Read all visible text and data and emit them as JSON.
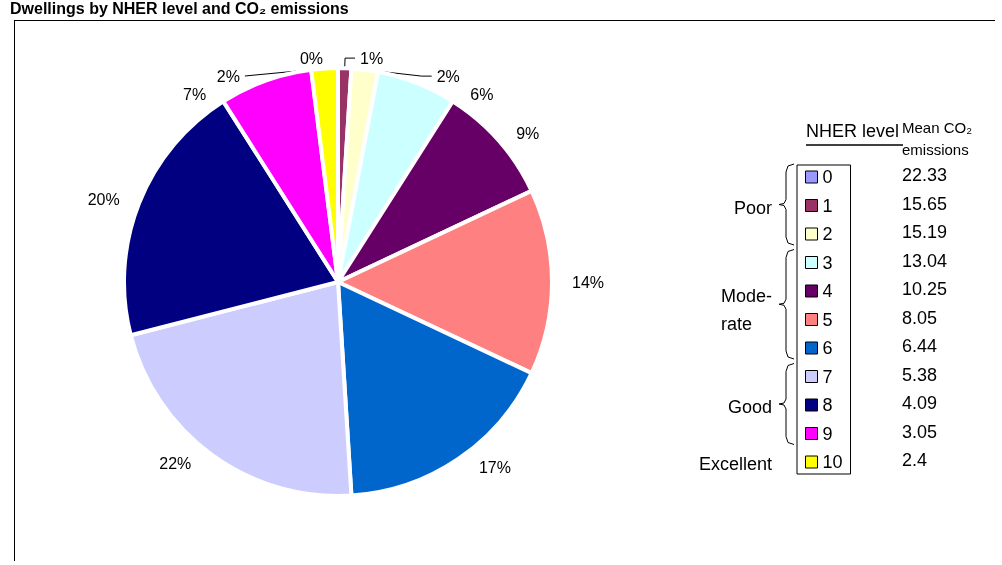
{
  "chart_data": {
    "type": "pie",
    "title": "Dwellings by NHER level and CO₂ emissions",
    "legend_title": "NHER level",
    "categories": [
      "0",
      "1",
      "2",
      "3",
      "4",
      "5",
      "6",
      "7",
      "8",
      "9",
      "10"
    ],
    "values": [
      0,
      1,
      2,
      6,
      9,
      14,
      17,
      22,
      20,
      7,
      2
    ],
    "colors": [
      "#9999ff",
      "#993366",
      "#ffffcc",
      "#ccffff",
      "#660066",
      "#ff8080",
      "#0066cc",
      "#ccccff",
      "#000080",
      "#ff00ff",
      "#ffff00"
    ],
    "value_labels": [
      "0%",
      "1%",
      "2%",
      "6%",
      "9%",
      "14%",
      "17%",
      "22%",
      "20%",
      "7%",
      "2%"
    ],
    "legend": "right",
    "annotations": [
      "Mean CO₂ emissions",
      "22.33",
      "15.65",
      "15.19",
      "13.04",
      "10.25",
      "8.05",
      "6.44",
      "5.38",
      "4.09",
      "3.05",
      "2.4",
      "Poor",
      "Mode-\nrate",
      "Good",
      "Excellent"
    ]
  }
}
